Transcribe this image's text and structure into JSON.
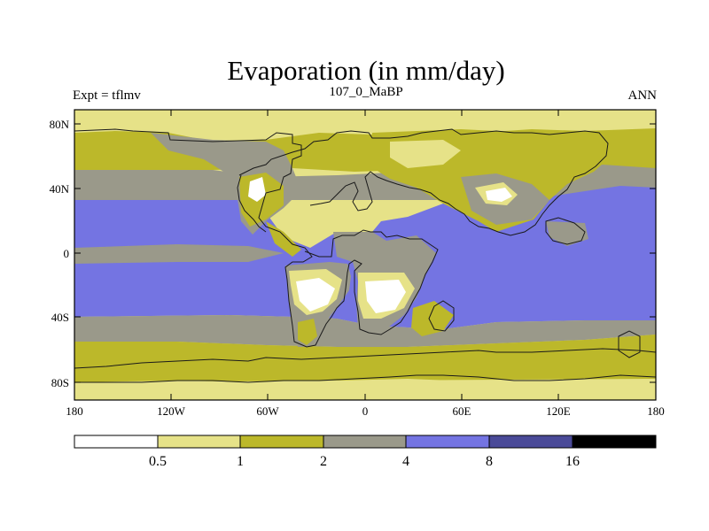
{
  "title": "Evaporation (in mm/day)",
  "subtitle_left": "Expt = tflmv",
  "subtitle_center": "107_0_MaBP",
  "subtitle_right": "ANN",
  "lat_ticks": [
    "80N",
    "40N",
    "0",
    "40S",
    "80S"
  ],
  "lon_ticks": [
    "180",
    "120W",
    "60W",
    "0",
    "60E",
    "120E",
    "180"
  ],
  "colorbar": {
    "colors": [
      "#ffffff",
      "#e6e288",
      "#bcb82a",
      "#9a998a",
      "#7474e2",
      "#4a4a98",
      "#000000"
    ],
    "labels": [
      "0.5",
      "1",
      "2",
      "4",
      "8",
      "16"
    ]
  },
  "palette": {
    "frame": "#000000",
    "coast": "#1a1a1a"
  }
}
